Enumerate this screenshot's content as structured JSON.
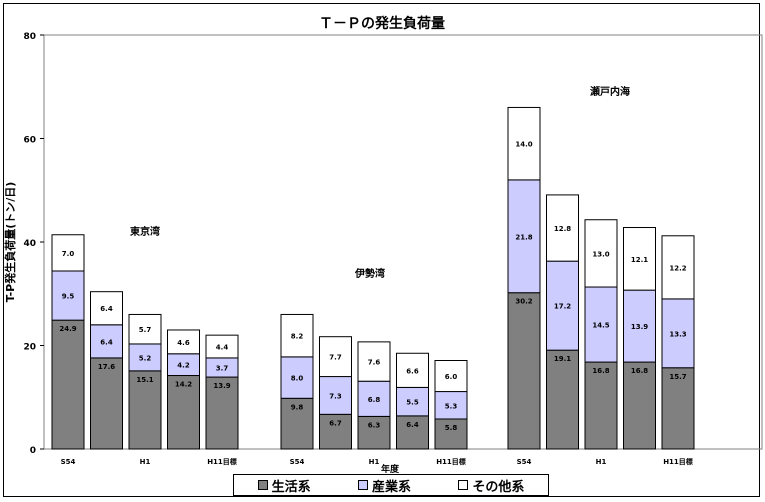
{
  "chart_data": {
    "type": "bar",
    "stacked": true,
    "title": "Ｔ－Ｐの発生負荷量",
    "ylabel": "T-P発生負荷量(トン/日)",
    "xlabel": "年度",
    "ylim": [
      0,
      80
    ],
    "yticks": [
      "0",
      "20",
      "40",
      "60",
      "80"
    ],
    "groups": [
      {
        "name": "東京湾",
        "categories": [
          "S54",
          "",
          "H1",
          "",
          "H11目標"
        ],
        "series": [
          {
            "name": "生活系",
            "values": [
              24.9,
              17.6,
              15.1,
              14.2,
              13.9
            ]
          },
          {
            "name": "産業系",
            "values": [
              9.5,
              6.4,
              5.2,
              4.2,
              3.7
            ]
          },
          {
            "name": "その他系",
            "values": [
              7.0,
              6.4,
              5.7,
              4.6,
              4.4
            ]
          }
        ]
      },
      {
        "name": "伊勢湾",
        "categories": [
          "S54",
          "",
          "H1",
          "",
          "H11目標"
        ],
        "series": [
          {
            "name": "生活系",
            "values": [
              9.8,
              6.7,
              6.3,
              6.4,
              5.8
            ]
          },
          {
            "name": "産業系",
            "values": [
              8.0,
              7.3,
              6.8,
              5.5,
              5.3
            ]
          },
          {
            "name": "その他系",
            "values": [
              8.2,
              7.7,
              7.6,
              6.6,
              6.0
            ]
          }
        ]
      },
      {
        "name": "瀬戸内海",
        "categories": [
          "S54",
          "",
          "H1",
          "",
          "H11目標"
        ],
        "series": [
          {
            "name": "生活系",
            "values": [
              30.2,
              19.1,
              16.8,
              16.8,
              15.7
            ]
          },
          {
            "name": "産業系",
            "values": [
              21.8,
              17.2,
              14.5,
              13.9,
              13.3
            ]
          },
          {
            "name": "その他系",
            "values": [
              14.0,
              12.8,
              13.0,
              12.1,
              12.2
            ]
          }
        ]
      }
    ],
    "colors": {
      "生活系": "#808080",
      "産業系": "#ccccff",
      "その他系": "#ffffff"
    },
    "legend": {
      "position": "bottom",
      "items": [
        "生活系",
        "産業系",
        "その他系"
      ]
    }
  }
}
